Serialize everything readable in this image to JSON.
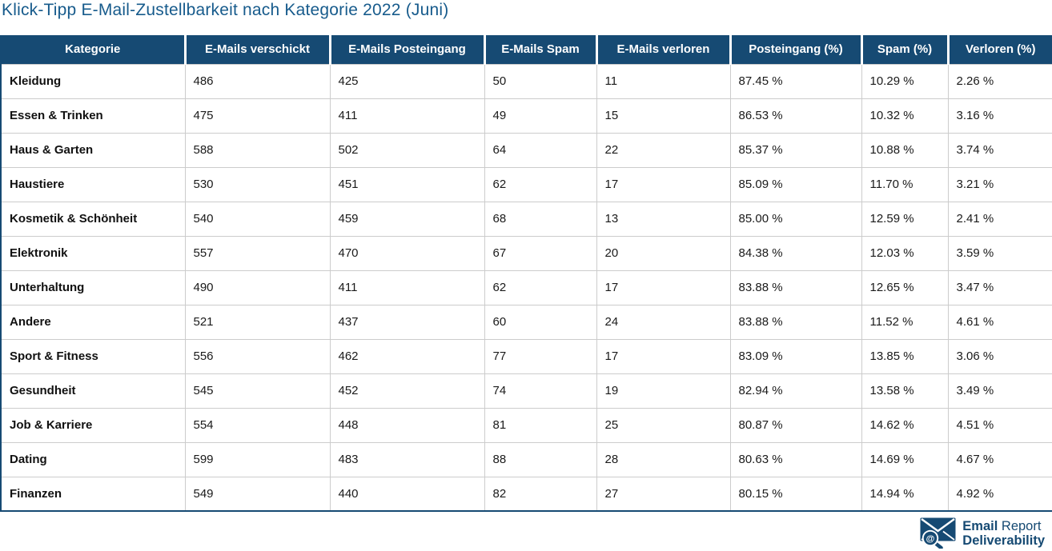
{
  "chart_data": {
    "type": "table",
    "title": "Klick-Tipp E-Mail-Zustellbarkeit nach Kategorie 2022 (Juni)",
    "columns": [
      "Kategorie",
      "E-Mails verschickt",
      "E-Mails Posteingang",
      "E-Mails Spam",
      "E-Mails verloren",
      "Posteingang (%)",
      "Spam (%)",
      "Verloren (%)"
    ],
    "rows": [
      [
        "Kleidung",
        "486",
        "425",
        "50",
        "11",
        "87.45 %",
        "10.29 %",
        "2.26 %"
      ],
      [
        "Essen & Trinken",
        "475",
        "411",
        "49",
        "15",
        "86.53 %",
        "10.32 %",
        "3.16 %"
      ],
      [
        "Haus & Garten",
        "588",
        "502",
        "64",
        "22",
        "85.37 %",
        "10.88 %",
        "3.74 %"
      ],
      [
        "Haustiere",
        "530",
        "451",
        "62",
        "17",
        "85.09 %",
        "11.70 %",
        "3.21 %"
      ],
      [
        "Kosmetik & Schönheit",
        "540",
        "459",
        "68",
        "13",
        "85.00 %",
        "12.59 %",
        "2.41 %"
      ],
      [
        "Elektronik",
        "557",
        "470",
        "67",
        "20",
        "84.38 %",
        "12.03 %",
        "3.59 %"
      ],
      [
        "Unterhaltung",
        "490",
        "411",
        "62",
        "17",
        "83.88 %",
        "12.65 %",
        "3.47 %"
      ],
      [
        "Andere",
        "521",
        "437",
        "60",
        "24",
        "83.88 %",
        "11.52 %",
        "4.61 %"
      ],
      [
        "Sport & Fitness",
        "556",
        "462",
        "77",
        "17",
        "83.09 %",
        "13.85 %",
        "3.06 %"
      ],
      [
        "Gesundheit",
        "545",
        "452",
        "74",
        "19",
        "82.94 %",
        "13.58 %",
        "3.49 %"
      ],
      [
        "Job & Karriere",
        "554",
        "448",
        "81",
        "25",
        "80.87 %",
        "14.62 %",
        "4.51 %"
      ],
      [
        "Dating",
        "599",
        "483",
        "88",
        "28",
        "80.63 %",
        "14.69 %",
        "4.67 %"
      ],
      [
        "Finanzen",
        "549",
        "440",
        "82",
        "27",
        "80.15 %",
        "14.94 %",
        "4.92 %"
      ]
    ]
  },
  "footer": {
    "brand_word_1": "Email",
    "brand_word_2": "Report",
    "brand_line_2": "Deliverability",
    "logo_icon": "envelope-magnifier-icon"
  },
  "colors": {
    "title_text": "#175b8c",
    "header_bg": "#164a73",
    "header_text": "#ffffff",
    "table_border": "#164a73",
    "row_divider": "#cccccc",
    "body_text": "#1a1a1a",
    "logo_text": "#164a73"
  }
}
